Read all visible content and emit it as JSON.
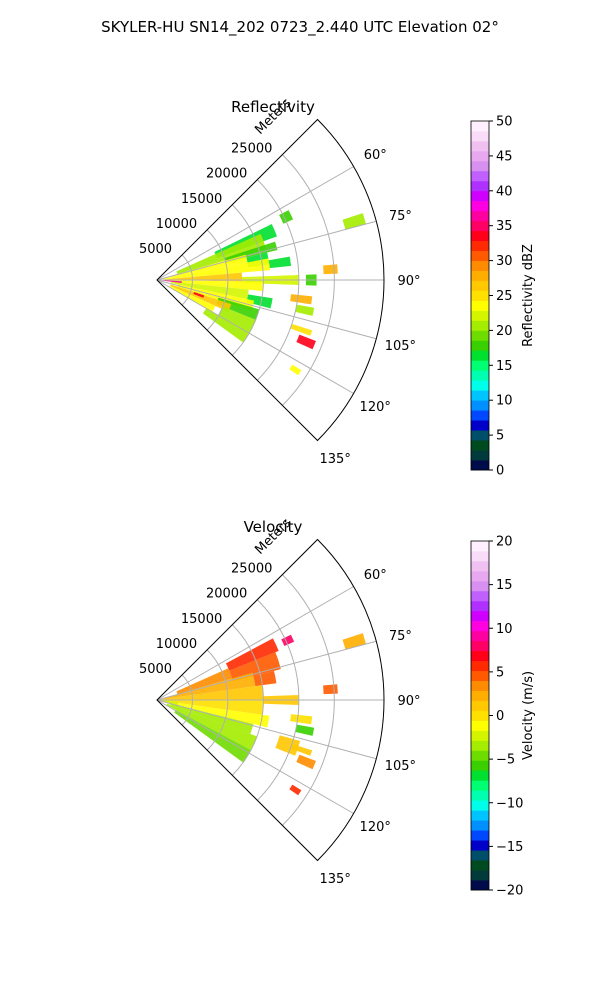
{
  "figure_title": "SKYLER-HU  SN14_202  0723_2.440 UTC Elevation 02°",
  "chart_data": [
    {
      "type": "heatmap",
      "projection": "polar-sector",
      "title": "Reflectivity",
      "range_label": "Meters",
      "range_ticks": [
        5000,
        10000,
        15000,
        20000,
        25000
      ],
      "range_tick_labels": [
        "5000",
        "10000",
        "15000",
        "20000",
        "25000"
      ],
      "range_max": 32000,
      "azimuth_range_deg": [
        45,
        135
      ],
      "azimuth_ticks": [
        60,
        75,
        90,
        105,
        120,
        135
      ],
      "azimuth_tick_labels": [
        "60°",
        "75°",
        "90°",
        "105°",
        "120°",
        "135°"
      ],
      "grid": true,
      "colorbar": {
        "label": "Reflectivity dBZ",
        "min": 0,
        "max": 50,
        "ticks": [
          0,
          5,
          10,
          15,
          20,
          25,
          30,
          35,
          40,
          45,
          50
        ],
        "tick_labels": [
          "0",
          "5",
          "10",
          "15",
          "20",
          "25",
          "30",
          "35",
          "40",
          "45",
          "50"
        ],
        "colors": [
          "#000b4a",
          "#003a3a",
          "#004a20",
          "#004f6a",
          "#0000c8",
          "#0048ff",
          "#0090ff",
          "#00c4ff",
          "#00ffea",
          "#00ffb0",
          "#00ff72",
          "#00e030",
          "#3ad000",
          "#6fdc00",
          "#a4ec00",
          "#d4f500",
          "#ffff00",
          "#ffe000",
          "#ffc800",
          "#ffae00",
          "#ff8c00",
          "#ff5a00",
          "#ff2a00",
          "#ff0018",
          "#ff0064",
          "#ff00a0",
          "#ff00e0",
          "#d000ff",
          "#b030ff",
          "#c060ff",
          "#d890f0",
          "#e8a8f0",
          "#f0c0f0",
          "#f8dcf8",
          "#fff0ff"
        ]
      },
      "sectors": [
        {
          "az": [
            62,
            66
          ],
          "r": [
            19500,
            21000
          ],
          "value": 18
        },
        {
          "az": [
            64,
            70
          ],
          "r": [
            9000,
            18000
          ],
          "value": 16
        },
        {
          "az": [
            66,
            74
          ],
          "r": [
            3000,
            16000
          ],
          "value": 21
        },
        {
          "az": [
            72,
            76
          ],
          "r": [
            10000,
            17500
          ],
          "value": 18
        },
        {
          "az": [
            74,
            79
          ],
          "r": [
            2000,
            13000
          ],
          "value": 24
        },
        {
          "az": [
            76,
            82
          ],
          "r": [
            13000,
            16000
          ],
          "value": 17
        },
        {
          "az": [
            79,
            85
          ],
          "r": [
            1000,
            16000
          ],
          "value": 23
        },
        {
          "az": [
            80,
            84
          ],
          "r": [
            16000,
            19000
          ],
          "value": 16
        },
        {
          "az": [
            85,
            91
          ],
          "r": [
            500,
            12000
          ],
          "value": 27
        },
        {
          "az": [
            88,
            92
          ],
          "r": [
            12000,
            20000
          ],
          "value": 22
        },
        {
          "az": [
            91,
            96
          ],
          "r": [
            1000,
            15000
          ],
          "value": 24
        },
        {
          "az": [
            96,
            102
          ],
          "r": [
            2000,
            13000
          ],
          "value": 22
        },
        {
          "az": [
            99,
            104
          ],
          "r": [
            13000,
            16500
          ],
          "value": 16
        },
        {
          "az": [
            102,
            108
          ],
          "r": [
            3000,
            14000
          ],
          "value": 23
        },
        {
          "az": [
            106,
            112
          ],
          "r": [
            9000,
            15000
          ],
          "value": 18
        },
        {
          "az": [
            108,
            114
          ],
          "r": [
            2000,
            11000
          ],
          "value": 27
        },
        {
          "az": [
            112,
            120
          ],
          "r": [
            10000,
            15000
          ],
          "value": 20
        },
        {
          "az": [
            114,
            120
          ],
          "r": [
            2000,
            9000
          ],
          "value": 24
        },
        {
          "az": [
            120,
            126
          ],
          "r": [
            8000,
            15000
          ],
          "value": 20
        },
        {
          "az": [
            93,
            97
          ],
          "r": [
            500,
            3500
          ],
          "value": 36
        },
        {
          "az": [
            108,
            111
          ],
          "r": [
            5500,
            7000
          ],
          "value": 34
        },
        {
          "az": [
            72,
            75
          ],
          "r": [
            27500,
            30500
          ],
          "value": 20
        },
        {
          "az": [
            85,
            88
          ],
          "r": [
            23500,
            25500
          ],
          "value": 28
        },
        {
          "az": [
            88,
            92
          ],
          "r": [
            21000,
            22500
          ],
          "value": 18
        },
        {
          "az": [
            96,
            99
          ],
          "r": [
            19000,
            22000
          ],
          "value": 28
        },
        {
          "az": [
            100,
            103
          ],
          "r": [
            20000,
            22500
          ],
          "value": 20
        },
        {
          "az": [
            108,
            110
          ],
          "r": [
            20000,
            23000
          ],
          "value": 25
        },
        {
          "az": [
            111,
            114
          ],
          "r": [
            21500,
            24000
          ],
          "value": 33
        },
        {
          "az": [
            122,
            124
          ],
          "r": [
            22500,
            24000
          ],
          "value": 24
        }
      ]
    },
    {
      "type": "heatmap",
      "projection": "polar-sector",
      "title": "Velocity",
      "range_label": "Meters",
      "range_ticks": [
        5000,
        10000,
        15000,
        20000,
        25000
      ],
      "range_tick_labels": [
        "5000",
        "10000",
        "15000",
        "20000",
        "25000"
      ],
      "range_max": 32000,
      "azimuth_range_deg": [
        45,
        135
      ],
      "azimuth_ticks": [
        60,
        75,
        90,
        105,
        120,
        135
      ],
      "azimuth_tick_labels": [
        "60°",
        "75°",
        "90°",
        "105°",
        "120°",
        "135°"
      ],
      "grid": true,
      "colorbar": {
        "label": "Velocity (m/s)",
        "min": -20,
        "max": 20,
        "ticks": [
          -20,
          -15,
          -10,
          -5,
          0,
          5,
          10,
          15,
          20
        ],
        "tick_labels": [
          "−20",
          "−15",
          "−10",
          "−5",
          "0",
          "5",
          "10",
          "15",
          "20"
        ],
        "colors": [
          "#000b4a",
          "#003a3a",
          "#004a20",
          "#004f6a",
          "#0000c8",
          "#0048ff",
          "#0090ff",
          "#00c4ff",
          "#00ffea",
          "#00ffb0",
          "#00ff72",
          "#00e030",
          "#3ad000",
          "#6fdc00",
          "#a4ec00",
          "#d4f500",
          "#ffff00",
          "#ffe000",
          "#ffc800",
          "#ffae00",
          "#ff8c00",
          "#ff5a00",
          "#ff2a00",
          "#ff0018",
          "#ff0064",
          "#ff00a0",
          "#ff00e0",
          "#d000ff",
          "#b030ff",
          "#c060ff",
          "#d890f0",
          "#e8a8f0",
          "#f0c0f0",
          "#f8dcf8",
          "#fff0ff"
        ]
      },
      "sectors": [
        {
          "az": [
            62,
            68
          ],
          "r": [
            11000,
            18500
          ],
          "value": 6
        },
        {
          "az": [
            64,
            67
          ],
          "r": [
            19500,
            21000
          ],
          "value": 8
        },
        {
          "az": [
            66,
            74
          ],
          "r": [
            3000,
            11000
          ],
          "value": 3
        },
        {
          "az": [
            68,
            76
          ],
          "r": [
            11000,
            18000
          ],
          "value": 5
        },
        {
          "az": [
            74,
            82
          ],
          "r": [
            1000,
            14000
          ],
          "value": 2
        },
        {
          "az": [
            76,
            82
          ],
          "r": [
            14000,
            17000
          ],
          "value": 4
        },
        {
          "az": [
            82,
            90
          ],
          "r": [
            500,
            15000
          ],
          "value": 1
        },
        {
          "az": [
            88,
            92
          ],
          "r": [
            15000,
            20000
          ],
          "value": 1
        },
        {
          "az": [
            90,
            98
          ],
          "r": [
            500,
            15000
          ],
          "value": 0
        },
        {
          "az": [
            98,
            104
          ],
          "r": [
            2000,
            16000
          ],
          "value": -1
        },
        {
          "az": [
            104,
            110
          ],
          "r": [
            2000,
            14000
          ],
          "value": -3
        },
        {
          "az": [
            110,
            118
          ],
          "r": [
            1500,
            15000
          ],
          "value": -4
        },
        {
          "az": [
            118,
            126
          ],
          "r": [
            3000,
            15000
          ],
          "value": -5
        },
        {
          "az": [
            95,
            106
          ],
          "r": [
            300,
            3000
          ],
          "value": -2
        },
        {
          "az": [
            106,
            112
          ],
          "r": [
            18000,
            21000
          ],
          "value": 1
        },
        {
          "az": [
            72,
            75
          ],
          "r": [
            27500,
            30500
          ],
          "value": 2
        },
        {
          "az": [
            85,
            88
          ],
          "r": [
            23500,
            25500
          ],
          "value": 4
        },
        {
          "az": [
            96,
            99
          ],
          "r": [
            19000,
            22000
          ],
          "value": 0
        },
        {
          "az": [
            100,
            103
          ],
          "r": [
            20000,
            22500
          ],
          "value": -6
        },
        {
          "az": [
            108,
            110
          ],
          "r": [
            20000,
            23000
          ],
          "value": 1
        },
        {
          "az": [
            111,
            114
          ],
          "r": [
            21500,
            24000
          ],
          "value": 3
        },
        {
          "az": [
            122,
            124
          ],
          "r": [
            22500,
            24000
          ],
          "value": 6
        }
      ]
    }
  ]
}
